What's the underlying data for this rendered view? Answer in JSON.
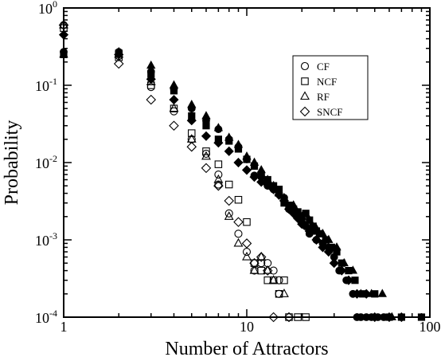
{
  "chart_data": {
    "type": "scatter",
    "title": "",
    "xlabel": "Number of Attractors",
    "ylabel": "Probability",
    "xscale": "log",
    "yscale": "log",
    "xlim": [
      1,
      100
    ],
    "ylim": [
      0.0001,
      1
    ],
    "grid": false,
    "legend_position": "top-right",
    "x_ticks": [
      {
        "value": 1,
        "label": "1"
      },
      {
        "value": 10,
        "label": "10"
      },
      {
        "value": 100,
        "label": "100"
      }
    ],
    "y_ticks": [
      {
        "value": 0.0001,
        "base": "10",
        "exp": "-4"
      },
      {
        "value": 0.001,
        "base": "10",
        "exp": "-3"
      },
      {
        "value": 0.01,
        "base": "10",
        "exp": "-2"
      },
      {
        "value": 0.1,
        "base": "10",
        "exp": "-1"
      },
      {
        "value": 1,
        "base": "10",
        "exp": "0"
      }
    ],
    "legend": [
      {
        "name": "CF",
        "marker": "circle"
      },
      {
        "name": "NCF",
        "marker": "square"
      },
      {
        "name": "RF",
        "marker": "triangle"
      },
      {
        "name": "SNCF",
        "marker": "diamond"
      }
    ],
    "series": [
      {
        "name": "CF",
        "marker": "circle",
        "filled": false,
        "points": [
          [
            1,
            0.6
          ],
          [
            2,
            0.24
          ],
          [
            3,
            0.095
          ],
          [
            4,
            0.046
          ],
          [
            5,
            0.02
          ],
          [
            6,
            0.013
          ],
          [
            7,
            0.007
          ],
          [
            7,
            0.0052
          ],
          [
            8,
            0.0022
          ],
          [
            9,
            0.0012
          ],
          [
            10,
            0.0007
          ],
          [
            11,
            0.0004
          ],
          [
            12,
            0.0005
          ],
          [
            13,
            0.0005
          ],
          [
            14,
            0.0004
          ],
          [
            15,
            0.0003
          ],
          [
            15,
            0.0002
          ]
        ]
      },
      {
        "name": "NCF",
        "marker": "square",
        "filled": false,
        "points": [
          [
            1,
            0.55
          ],
          [
            2,
            0.23
          ],
          [
            3,
            0.1
          ],
          [
            4,
            0.05
          ],
          [
            5,
            0.024
          ],
          [
            6,
            0.014
          ],
          [
            7,
            0.0095
          ],
          [
            8,
            0.0052
          ],
          [
            9,
            0.0033
          ],
          [
            10,
            0.0017
          ],
          [
            11,
            0.0005
          ],
          [
            12,
            0.0004
          ],
          [
            13,
            0.0003
          ],
          [
            14,
            0.0003
          ],
          [
            15,
            0.0002
          ],
          [
            16,
            0.0003
          ],
          [
            17,
            0.0001
          ],
          [
            19,
            0.0001
          ],
          [
            21,
            0.0001
          ]
        ]
      },
      {
        "name": "RF",
        "marker": "triangle",
        "filled": false,
        "points": [
          [
            1,
            0.6
          ],
          [
            2,
            0.25
          ],
          [
            3,
            0.11
          ],
          [
            4,
            0.05
          ],
          [
            5,
            0.02
          ],
          [
            6,
            0.012
          ],
          [
            7,
            0.006
          ],
          [
            8,
            0.002
          ],
          [
            9,
            0.0009
          ],
          [
            10,
            0.0006
          ],
          [
            11,
            0.0004
          ],
          [
            12,
            0.0006
          ],
          [
            13,
            0.0004
          ],
          [
            14,
            0.0003
          ],
          [
            16,
            0.0002
          ]
        ]
      },
      {
        "name": "SNCF",
        "marker": "diamond",
        "filled": false,
        "points": [
          [
            1,
            0.6
          ],
          [
            2,
            0.19
          ],
          [
            3,
            0.065
          ],
          [
            4,
            0.03
          ],
          [
            5,
            0.016
          ],
          [
            6,
            0.0085
          ],
          [
            7,
            0.005
          ],
          [
            8,
            0.0032
          ],
          [
            9,
            0.0017
          ],
          [
            10,
            0.0009
          ],
          [
            11,
            0.0005
          ],
          [
            12,
            0.0006
          ],
          [
            13,
            0.0004
          ],
          [
            14,
            0.0001
          ],
          [
            17,
            0.0001
          ]
        ]
      },
      {
        "name": "CF (filled)",
        "marker": "circle",
        "filled": true,
        "points": [
          [
            1,
            0.27
          ],
          [
            2,
            0.27
          ],
          [
            3,
            0.15
          ],
          [
            4,
            0.09
          ],
          [
            5,
            0.05
          ],
          [
            6,
            0.035
          ],
          [
            7,
            0.027
          ],
          [
            8,
            0.02
          ],
          [
            9,
            0.016
          ],
          [
            10,
            0.011
          ],
          [
            11,
            0.0068
          ],
          [
            12,
            0.0065
          ],
          [
            13,
            0.005
          ],
          [
            14,
            0.0045
          ],
          [
            15,
            0.004
          ],
          [
            16,
            0.0035
          ],
          [
            17,
            0.0025
          ],
          [
            18,
            0.0023
          ],
          [
            19,
            0.002
          ],
          [
            20,
            0.0017
          ],
          [
            21,
            0.0015
          ],
          [
            22,
            0.0012
          ],
          [
            24,
            0.001
          ],
          [
            26,
            0.0009
          ],
          [
            28,
            0.0008
          ],
          [
            30,
            0.0006
          ],
          [
            32,
            0.0004
          ],
          [
            35,
            0.0003
          ],
          [
            38,
            0.0002
          ],
          [
            40,
            0.0001
          ],
          [
            42,
            0.0001
          ],
          [
            45,
            0.0001
          ],
          [
            48,
            0.0001
          ],
          [
            52,
            0.0001
          ],
          [
            56,
            0.0001
          ]
        ]
      },
      {
        "name": "NCF (filled)",
        "marker": "square",
        "filled": true,
        "points": [
          [
            1,
            0.25
          ],
          [
            2,
            0.26
          ],
          [
            3,
            0.14
          ],
          [
            4,
            0.085
          ],
          [
            5,
            0.04
          ],
          [
            6,
            0.03
          ],
          [
            7,
            0.02
          ],
          [
            8,
            0.019
          ],
          [
            9,
            0.015
          ],
          [
            10,
            0.011
          ],
          [
            11,
            0.009
          ],
          [
            12,
            0.007
          ],
          [
            13,
            0.006
          ],
          [
            14,
            0.005
          ],
          [
            15,
            0.0045
          ],
          [
            16,
            0.003
          ],
          [
            17,
            0.0028
          ],
          [
            18,
            0.0025
          ],
          [
            19,
            0.0023
          ],
          [
            20,
            0.002
          ],
          [
            21,
            0.0022
          ],
          [
            22,
            0.0018
          ],
          [
            23,
            0.0015
          ],
          [
            24,
            0.0013
          ],
          [
            25,
            0.0012
          ],
          [
            27,
            0.001
          ],
          [
            29,
            0.0008
          ],
          [
            31,
            0.0007
          ],
          [
            33,
            0.0005
          ],
          [
            36,
            0.0004
          ],
          [
            39,
            0.0003
          ],
          [
            43,
            0.0002
          ],
          [
            50,
            0.0002
          ],
          [
            60,
            0.0001
          ],
          [
            70,
            0.0001
          ],
          [
            90,
            0.0001
          ]
        ]
      },
      {
        "name": "RF (filled)",
        "marker": "triangle",
        "filled": true,
        "points": [
          [
            1,
            0.25
          ],
          [
            2,
            0.27
          ],
          [
            3,
            0.18
          ],
          [
            4,
            0.1
          ],
          [
            5,
            0.056
          ],
          [
            6,
            0.04
          ],
          [
            7,
            0.028
          ],
          [
            8,
            0.021
          ],
          [
            9,
            0.017
          ],
          [
            10,
            0.012
          ],
          [
            11,
            0.01
          ],
          [
            12,
            0.008
          ],
          [
            13,
            0.006
          ],
          [
            14,
            0.005
          ],
          [
            15,
            0.004
          ],
          [
            16,
            0.0035
          ],
          [
            18,
            0.0028
          ],
          [
            20,
            0.002
          ],
          [
            22,
            0.0018
          ],
          [
            24,
            0.0014
          ],
          [
            26,
            0.0012
          ],
          [
            28,
            0.001
          ],
          [
            31,
            0.0008
          ],
          [
            34,
            0.0005
          ],
          [
            38,
            0.0004
          ],
          [
            42,
            0.0002
          ],
          [
            48,
            0.0002
          ],
          [
            55,
            0.0002
          ],
          [
            62,
            0.0001
          ]
        ]
      },
      {
        "name": "SNCF (filled)",
        "marker": "diamond",
        "filled": true,
        "points": [
          [
            1,
            0.45
          ],
          [
            2,
            0.25
          ],
          [
            3,
            0.12
          ],
          [
            4,
            0.065
          ],
          [
            5,
            0.035
          ],
          [
            6,
            0.022
          ],
          [
            7,
            0.018
          ],
          [
            8,
            0.014
          ],
          [
            9,
            0.01
          ],
          [
            10,
            0.008
          ],
          [
            11,
            0.0065
          ],
          [
            12,
            0.0056
          ],
          [
            13,
            0.0052
          ],
          [
            14,
            0.0045
          ],
          [
            15,
            0.0038
          ],
          [
            16,
            0.0032
          ],
          [
            17,
            0.0025
          ],
          [
            18,
            0.0022
          ],
          [
            19,
            0.0019
          ],
          [
            20,
            0.0016
          ],
          [
            22,
            0.0013
          ],
          [
            24,
            0.001
          ],
          [
            26,
            0.0008
          ],
          [
            28,
            0.0007
          ],
          [
            30,
            0.0005
          ],
          [
            33,
            0.0004
          ],
          [
            36,
            0.0003
          ],
          [
            40,
            0.0002
          ],
          [
            45,
            0.0002
          ],
          [
            50,
            0.0001
          ],
          [
            60,
            0.0001
          ],
          [
            70,
            0.0001
          ]
        ]
      }
    ]
  }
}
